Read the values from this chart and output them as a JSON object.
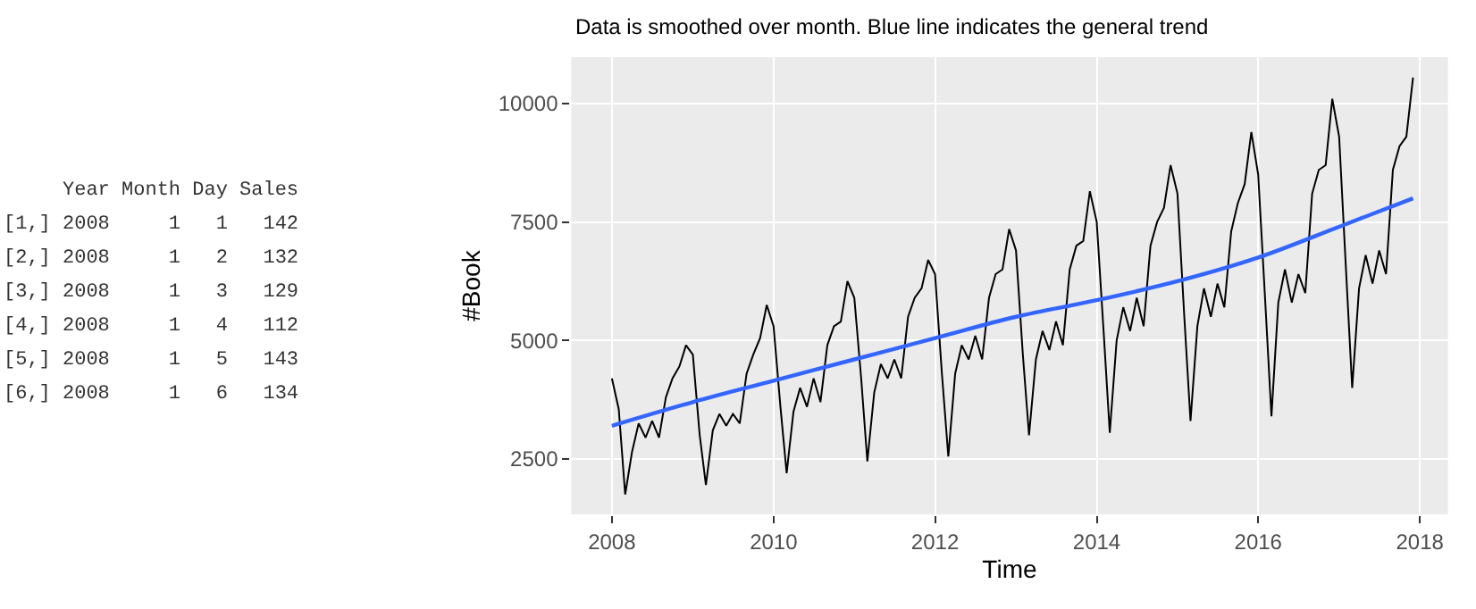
{
  "chart_data": [
    {
      "type": "other",
      "annotations": [
        "     Year Month Day Sales",
        "[1,] 2008     1   1   142",
        "[2,] 2008     1   2   132",
        "[3,] 2008     1   3   129",
        "[4,] 2008     1   4   112",
        "[5,] 2008     1   5   143",
        "[6,] 2008     1   6   134"
      ]
    },
    {
      "type": "line",
      "title": "Data is smoothed over month. Blue line indicates the general trend",
      "xlabel": "Time",
      "ylabel": "#Book",
      "xlim": [
        "2007-07-01",
        "2018-05-08"
      ],
      "xticks": [
        {
          "value": "2008-01-01",
          "label": "2008"
        },
        {
          "value": "2010-01-01",
          "label": "2010"
        },
        {
          "value": "2012-01-01",
          "label": "2012"
        },
        {
          "value": "2014-01-01",
          "label": "2014"
        },
        {
          "value": "2016-01-01",
          "label": "2016"
        },
        {
          "value": "2018-01-01",
          "label": "2018"
        }
      ],
      "ylim": [
        1330,
        10980
      ],
      "yticks": [
        2500,
        5000,
        7500,
        10000
      ],
      "grid": true,
      "marker": "none",
      "series": [
        {
          "color": "#000000",
          "x": [
            "2008-01",
            "2008-02",
            "2008-03",
            "2008-04",
            "2008-05",
            "2008-06",
            "2008-07",
            "2008-08",
            "2008-09",
            "2008-10",
            "2008-11",
            "2008-12",
            "2009-01",
            "2009-02",
            "2009-03",
            "2009-04",
            "2009-05",
            "2009-06",
            "2009-07",
            "2009-08",
            "2009-09",
            "2009-10",
            "2009-11",
            "2009-12",
            "2010-01",
            "2010-02",
            "2010-03",
            "2010-04",
            "2010-05",
            "2010-06",
            "2010-07",
            "2010-08",
            "2010-09",
            "2010-10",
            "2010-11",
            "2010-12",
            "2011-01",
            "2011-02",
            "2011-03",
            "2011-04",
            "2011-05",
            "2011-06",
            "2011-07",
            "2011-08",
            "2011-09",
            "2011-10",
            "2011-11",
            "2011-12",
            "2012-01",
            "2012-02",
            "2012-03",
            "2012-04",
            "2012-05",
            "2012-06",
            "2012-07",
            "2012-08",
            "2012-09",
            "2012-10",
            "2012-11",
            "2012-12",
            "2013-01",
            "2013-02",
            "2013-03",
            "2013-04",
            "2013-05",
            "2013-06",
            "2013-07",
            "2013-08",
            "2013-09",
            "2013-10",
            "2013-11",
            "2013-12",
            "2014-01",
            "2014-02",
            "2014-03",
            "2014-04",
            "2014-05",
            "2014-06",
            "2014-07",
            "2014-08",
            "2014-09",
            "2014-10",
            "2014-11",
            "2014-12",
            "2015-01",
            "2015-02",
            "2015-03",
            "2015-04",
            "2015-05",
            "2015-06",
            "2015-07",
            "2015-08",
            "2015-09",
            "2015-10",
            "2015-11",
            "2015-12",
            "2016-01",
            "2016-02",
            "2016-03",
            "2016-04",
            "2016-05",
            "2016-06",
            "2016-07",
            "2016-08",
            "2016-09",
            "2016-10",
            "2016-11",
            "2016-12",
            "2017-01",
            "2017-02",
            "2017-03",
            "2017-04",
            "2017-05",
            "2017-06",
            "2017-07",
            "2017-08",
            "2017-09",
            "2017-10",
            "2017-11",
            "2017-12"
          ],
          "values": [
            4200,
            3550,
            1750,
            2650,
            3250,
            2950,
            3300,
            2950,
            3800,
            4200,
            4450,
            4900,
            4700,
            3000,
            1950,
            3100,
            3450,
            3200,
            3450,
            3250,
            4300,
            4700,
            5050,
            5750,
            5300,
            3600,
            2200,
            3500,
            4000,
            3600,
            4200,
            3700,
            4900,
            5300,
            5400,
            6250,
            5900,
            4200,
            2450,
            3900,
            4500,
            4200,
            4600,
            4200,
            5500,
            5900,
            6100,
            6700,
            6400,
            4300,
            2550,
            4300,
            4900,
            4600,
            5100,
            4600,
            5900,
            6400,
            6500,
            7350,
            6900,
            4700,
            3000,
            4600,
            5200,
            4800,
            5400,
            4900,
            6500,
            7000,
            7100,
            8150,
            7500,
            5200,
            3050,
            5000,
            5700,
            5200,
            5900,
            5300,
            7000,
            7500,
            7800,
            8700,
            8100,
            5500,
            3300,
            5300,
            6100,
            5500,
            6200,
            5700,
            7300,
            7900,
            8300,
            9400,
            8500,
            5900,
            3400,
            5800,
            6500,
            5800,
            6400,
            6000,
            8100,
            8600,
            8700,
            10100,
            9300,
            6500,
            4000,
            6100,
            6800,
            6200,
            6900,
            6400,
            8600,
            9100,
            9300,
            10550
          ]
        },
        {
          "color": "#3366ff",
          "x": [
            "2008-01",
            "2009-01",
            "2010-01",
            "2011-01",
            "2012-01",
            "2013-01",
            "2014-01",
            "2015-01",
            "2016-01",
            "2017-01",
            "2017-12"
          ],
          "values": [
            3200,
            3700,
            4150,
            4600,
            5050,
            5500,
            5850,
            6250,
            6750,
            7400,
            8000
          ]
        }
      ]
    }
  ]
}
